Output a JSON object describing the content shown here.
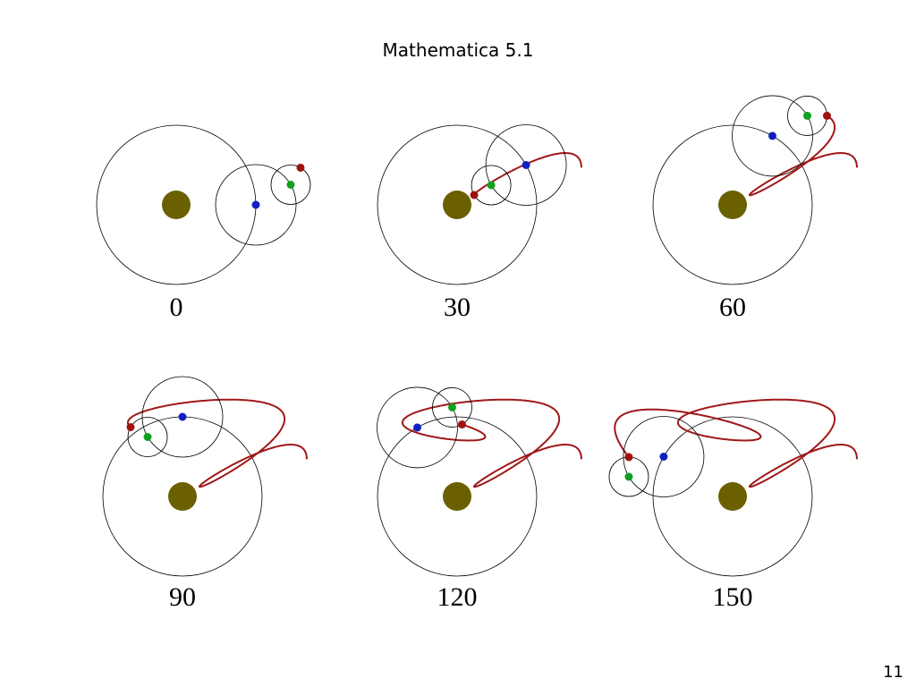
{
  "header": {
    "title": "Mathematica 5.1"
  },
  "panels": [
    {
      "label": 0
    },
    {
      "label": 30
    },
    {
      "label": 60
    },
    {
      "label": 90
    },
    {
      "label": 120
    },
    {
      "label": 150
    }
  ],
  "footer": {
    "page_number": 11
  }
}
